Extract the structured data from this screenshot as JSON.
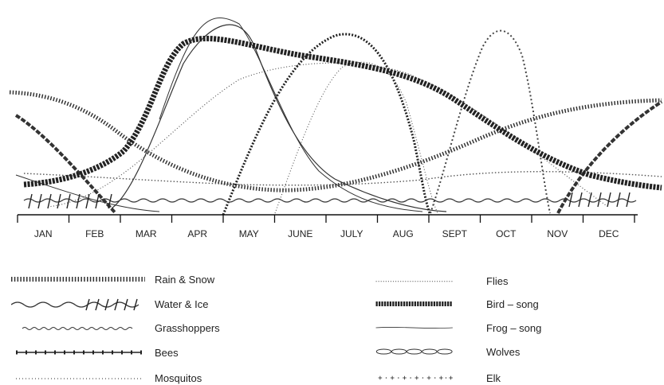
{
  "diagram": {
    "months": [
      "JAN",
      "FEB",
      "MAR",
      "APR",
      "MAY",
      "JUNE",
      "JULY",
      "AUG",
      "SEPT",
      "OCT",
      "NOV",
      "DEC"
    ],
    "legend_left": [
      {
        "label": "Rain & Snow",
        "pattern": "rain"
      },
      {
        "label": "Water & Ice",
        "pattern": "water"
      },
      {
        "label": "Grasshoppers",
        "pattern": "grass"
      },
      {
        "label": "Bees",
        "pattern": "bees"
      },
      {
        "label": "Mosquitos",
        "pattern": "mosq"
      }
    ],
    "legend_right": [
      {
        "label": "Flies",
        "pattern": "flies"
      },
      {
        "label": "Bird – song",
        "pattern": "bird"
      },
      {
        "label": "Frog – song",
        "pattern": "frog"
      },
      {
        "label": "Wolves",
        "pattern": "wolves"
      },
      {
        "label": "Elk",
        "pattern": "elk"
      }
    ]
  }
}
